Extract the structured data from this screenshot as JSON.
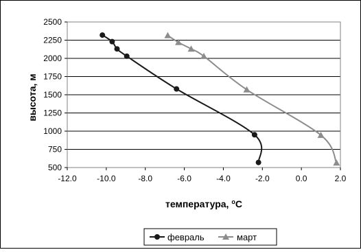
{
  "chart_data": {
    "type": "line",
    "title": "",
    "xlabel": "температура, °C",
    "xlabel_main": "температура, ",
    "xlabel_sup": "o",
    "xlabel_unit": "C",
    "ylabel": "высота, м",
    "xlim": [
      -12,
      2
    ],
    "ylim": [
      500,
      2500
    ],
    "x_ticks": [
      "-12.0",
      "-10.0",
      "-8.0",
      "-6.0",
      "-4.0",
      "-2.0",
      "0.0",
      "2.0"
    ],
    "x_tick_values": [
      -12,
      -10,
      -8,
      -6,
      -4,
      -2,
      0,
      2
    ],
    "y_ticks": [
      "500",
      "750",
      "1000",
      "1250",
      "1500",
      "1750",
      "2000",
      "2250",
      "2500"
    ],
    "y_tick_values": [
      500,
      750,
      1000,
      1250,
      1500,
      1750,
      2000,
      2250,
      2500
    ],
    "grid": "horizontal",
    "legend_position": "bottom",
    "series": [
      {
        "name": "февраль",
        "color": "#1a1a1a",
        "marker": "circle",
        "points": [
          [
            -10.2,
            2320
          ],
          [
            -9.7,
            2230
          ],
          [
            -9.45,
            2130
          ],
          [
            -8.95,
            2030
          ],
          [
            -6.4,
            1580
          ],
          [
            -2.4,
            950
          ],
          [
            -2.2,
            570
          ]
        ]
      },
      {
        "name": "март",
        "color": "#8c8c8c",
        "marker": "triangle",
        "points": [
          [
            -6.85,
            2315
          ],
          [
            -6.3,
            2220
          ],
          [
            -5.65,
            2130
          ],
          [
            -5.0,
            2030
          ],
          [
            -2.8,
            1570
          ],
          [
            1.0,
            945
          ],
          [
            1.8,
            565
          ]
        ]
      }
    ]
  }
}
